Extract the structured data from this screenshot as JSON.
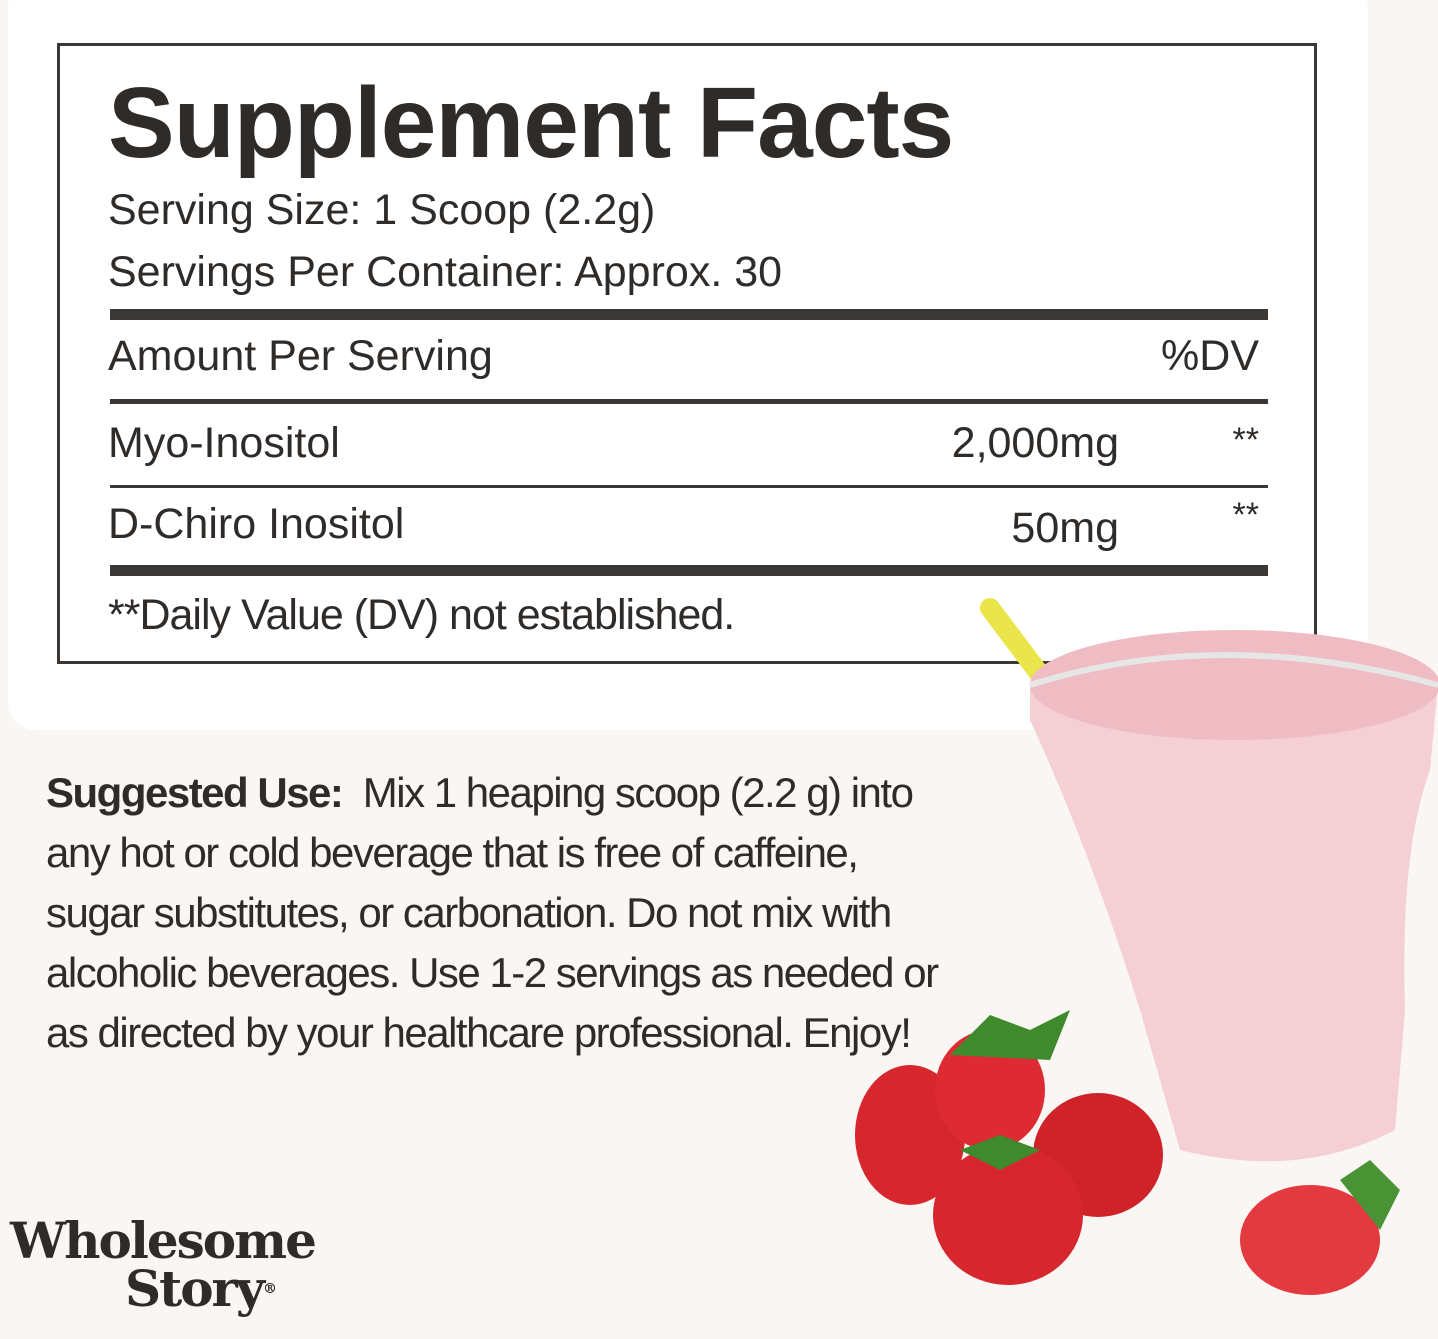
{
  "facts": {
    "title": "Supplement Facts",
    "serving_size": "Serving Size: 1 Scoop (2.2g)",
    "servings_per_container": "Servings Per Container: Approx. 30",
    "amount_header": "Amount Per Serving",
    "dv_header": "%DV",
    "rows": [
      {
        "name": "Myo-Inositol",
        "amount": "2,000mg",
        "dv": "**"
      },
      {
        "name": "D-Chiro Inositol",
        "amount": "50mg",
        "dv": "**"
      }
    ],
    "footnote": "**Daily Value (DV) not established."
  },
  "suggested_use": {
    "label": "Suggested Use:",
    "text": "Mix 1 heaping scoop (2.2 g) into any hot or cold beverage that is free of caffeine, sugar substitutes, or carbonation. Do not mix with alcoholic beverages. Use 1-2 servings as needed or as directed by your healthcare professional. Enjoy!"
  },
  "brand": {
    "line1": "Wholesome",
    "line2": "Story",
    "mark": "®"
  },
  "colors": {
    "background": "#faf6f3",
    "text": "#2e2b29",
    "smoothie": "#f2c6cc",
    "strawberry": "#d8262f",
    "straw": "#e9e54a"
  }
}
